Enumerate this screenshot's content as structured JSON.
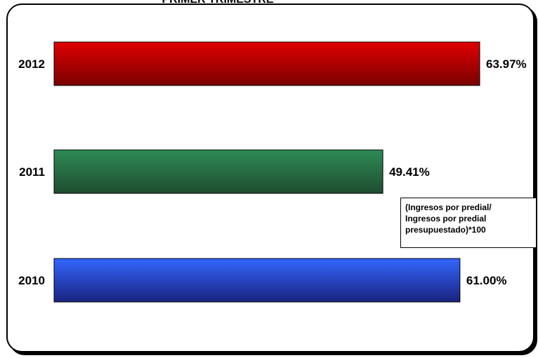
{
  "chart_data": {
    "type": "bar",
    "orientation": "horizontal",
    "title": "PRIMER TRIMESTRE",
    "categories": [
      "2012",
      "2011",
      "2010"
    ],
    "values": [
      63.97,
      49.41,
      61.0
    ],
    "value_labels": [
      "63.97%",
      "49.41%",
      "61.00%"
    ],
    "xlim": [
      0,
      63.97
    ],
    "grid": false,
    "legend": "none",
    "colors": [
      "#e00000",
      "#2e8b57",
      "#3366ff"
    ],
    "colors_dark": [
      "#7a0000",
      "#1e4d2e",
      "#1a237e"
    ],
    "annotation": "(Ingresos por predial/\nIngresos por predial\npresupuestado)*100"
  }
}
